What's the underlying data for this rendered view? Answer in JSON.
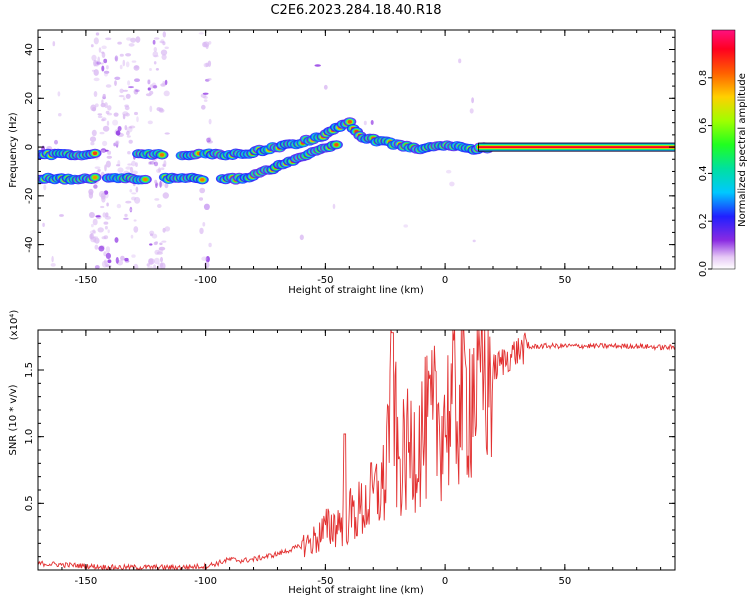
{
  "title": "C2E6.2023.284.18.40.R18",
  "colors": {
    "snr_line": "#e23030",
    "axis": "#000000",
    "background": "#ffffff"
  },
  "chart_data": [
    {
      "type": "heatmap",
      "xlabel": "Height of straight line (km)",
      "ylabel": "Frequency (Hz)",
      "xlim": [
        -170,
        96
      ],
      "ylim": [
        -50,
        48
      ],
      "xticks": [
        -150,
        -100,
        -50,
        0,
        50
      ],
      "xtick_labels": [
        "-150",
        "-100",
        "-50",
        "0",
        "50"
      ],
      "yticks": [
        -40,
        -20,
        0,
        20,
        40
      ],
      "ytick_labels": [
        "-40",
        "-20",
        "0",
        "20",
        "40"
      ],
      "colorbar": {
        "label": "Normalized spectral amplitude",
        "range": [
          0,
          1
        ],
        "ticks": [
          0.0,
          0.2,
          0.4,
          0.6,
          0.8
        ],
        "tick_labels": [
          "0.0",
          "0.2",
          "0.4",
          "0.6",
          "0.8"
        ]
      },
      "tracks": [
        {
          "name": "upper-track",
          "points": [
            [
              -170,
              -3
            ],
            [
              -150,
              -3
            ],
            [
              -125,
              -3
            ],
            [
              -100,
              -3
            ],
            [
              -85,
              -3
            ],
            [
              -70,
              0
            ],
            [
              -60,
              2
            ],
            [
              -50,
              5
            ],
            [
              -45,
              8
            ],
            [
              -40,
              10
            ],
            [
              -35,
              4
            ],
            [
              -25,
              2
            ],
            [
              -10,
              -1
            ],
            [
              0,
              1
            ],
            [
              10,
              -1
            ],
            [
              20,
              0
            ],
            [
              50,
              0
            ],
            [
              96,
              0
            ]
          ]
        },
        {
          "name": "lower-track",
          "points": [
            [
              -170,
              -13
            ],
            [
              -150,
              -13
            ],
            [
              -125,
              -13
            ],
            [
              -100,
              -13
            ],
            [
              -85,
              -13
            ],
            [
              -75,
              -10
            ],
            [
              -65,
              -6
            ],
            [
              -55,
              -2
            ],
            [
              -45,
              1
            ]
          ]
        }
      ]
    },
    {
      "type": "line",
      "xlabel": "Height of straight line (km)",
      "ylabel": "SNR (10 * v/v)",
      "multiplier": "(x10⁴)",
      "xlim": [
        -170,
        96
      ],
      "ylim": [
        0,
        1.8
      ],
      "xticks": [
        -150,
        -100,
        -50,
        0,
        50
      ],
      "xtick_labels": [
        "-150",
        "-100",
        "-50",
        "0",
        "50"
      ],
      "yticks": [
        0.5,
        1.0,
        1.5
      ],
      "ytick_labels": [
        "0.5",
        "1.0",
        "1.5"
      ],
      "series": [
        {
          "name": "SNR",
          "x": [
            -170,
            -160,
            -150,
            -140,
            -130,
            -120,
            -110,
            -100,
            -95,
            -90,
            -85,
            -80,
            -75,
            -70,
            -65,
            -60,
            -55,
            -50,
            -45,
            -40,
            -35,
            -30,
            -25,
            -22,
            -20,
            -15,
            -10,
            -5,
            0,
            5,
            10,
            15,
            20,
            25,
            30,
            35,
            40,
            50,
            60,
            70,
            80,
            90,
            96
          ],
          "values": [
            0.05,
            0.04,
            0.03,
            0.02,
            0.02,
            0.02,
            0.02,
            0.03,
            0.05,
            0.08,
            0.07,
            0.08,
            0.1,
            0.12,
            0.15,
            0.18,
            0.22,
            0.3,
            0.35,
            0.4,
            0.45,
            0.55,
            0.65,
            1.75,
            0.75,
            0.9,
            1.0,
            1.1,
            1.15,
            1.25,
            1.35,
            1.45,
            1.5,
            1.58,
            1.64,
            1.67,
            1.68,
            1.68,
            1.68,
            1.68,
            1.68,
            1.67,
            1.67
          ]
        }
      ]
    }
  ]
}
